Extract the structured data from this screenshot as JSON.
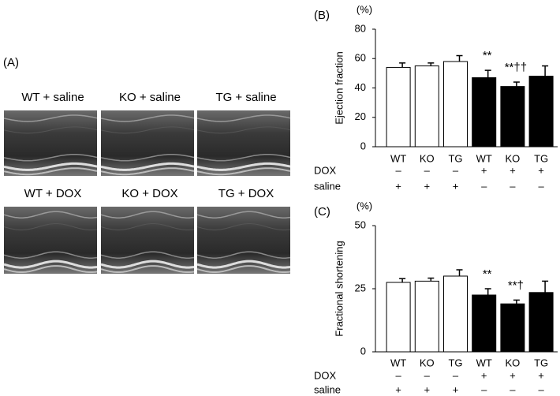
{
  "panel_a": {
    "label": "(A)",
    "images": [
      {
        "label": "WT + saline"
      },
      {
        "label": "KO + saline"
      },
      {
        "label": "TG + saline"
      },
      {
        "label": "WT + DOX"
      },
      {
        "label": "KO + DOX"
      },
      {
        "label": "TG + DOX"
      }
    ]
  },
  "chart_data": [
    {
      "type": "bar",
      "panel_label": "(B)",
      "unit_label": "(%)",
      "y_label": "Ejection fraction",
      "categories": [
        "WT",
        "KO",
        "TG",
        "WT",
        "KO",
        "TG"
      ],
      "values": [
        54,
        55,
        58,
        47,
        41,
        48
      ],
      "errors": [
        3,
        2,
        4,
        5,
        3,
        7
      ],
      "colors": [
        "#ffffff",
        "#ffffff",
        "#ffffff",
        "#000000",
        "#000000",
        "#000000"
      ],
      "significance_labels": [
        null,
        null,
        null,
        "**",
        "**††",
        null
      ],
      "conditions": [
        {
          "name": "DOX",
          "labels": [
            "–",
            "–",
            "–",
            "+",
            "+",
            "+"
          ]
        },
        {
          "name": "saline",
          "labels": [
            "+",
            "+",
            "+",
            "–",
            "–",
            "–"
          ]
        }
      ],
      "ylim": [
        0,
        80
      ],
      "yticks": [
        0,
        20,
        40,
        60,
        80
      ]
    },
    {
      "type": "bar",
      "panel_label": "(C)",
      "unit_label": "(%)",
      "y_label": "Fractional shortening",
      "categories": [
        "WT",
        "KO",
        "TG",
        "WT",
        "KO",
        "TG"
      ],
      "values": [
        27.5,
        28,
        30,
        22.5,
        19,
        23.5
      ],
      "errors": [
        1.5,
        1.2,
        2.5,
        2.5,
        1.5,
        4.5
      ],
      "colors": [
        "#ffffff",
        "#ffffff",
        "#ffffff",
        "#000000",
        "#000000",
        "#000000"
      ],
      "significance_labels": [
        null,
        null,
        null,
        "**",
        "**†",
        null
      ],
      "conditions": [
        {
          "name": "DOX",
          "labels": [
            "–",
            "–",
            "–",
            "+",
            "+",
            "+"
          ]
        },
        {
          "name": "saline",
          "labels": [
            "+",
            "+",
            "+",
            "–",
            "–",
            "–"
          ]
        }
      ],
      "ylim": [
        0,
        50
      ],
      "yticks": [
        0,
        25,
        50
      ]
    }
  ]
}
